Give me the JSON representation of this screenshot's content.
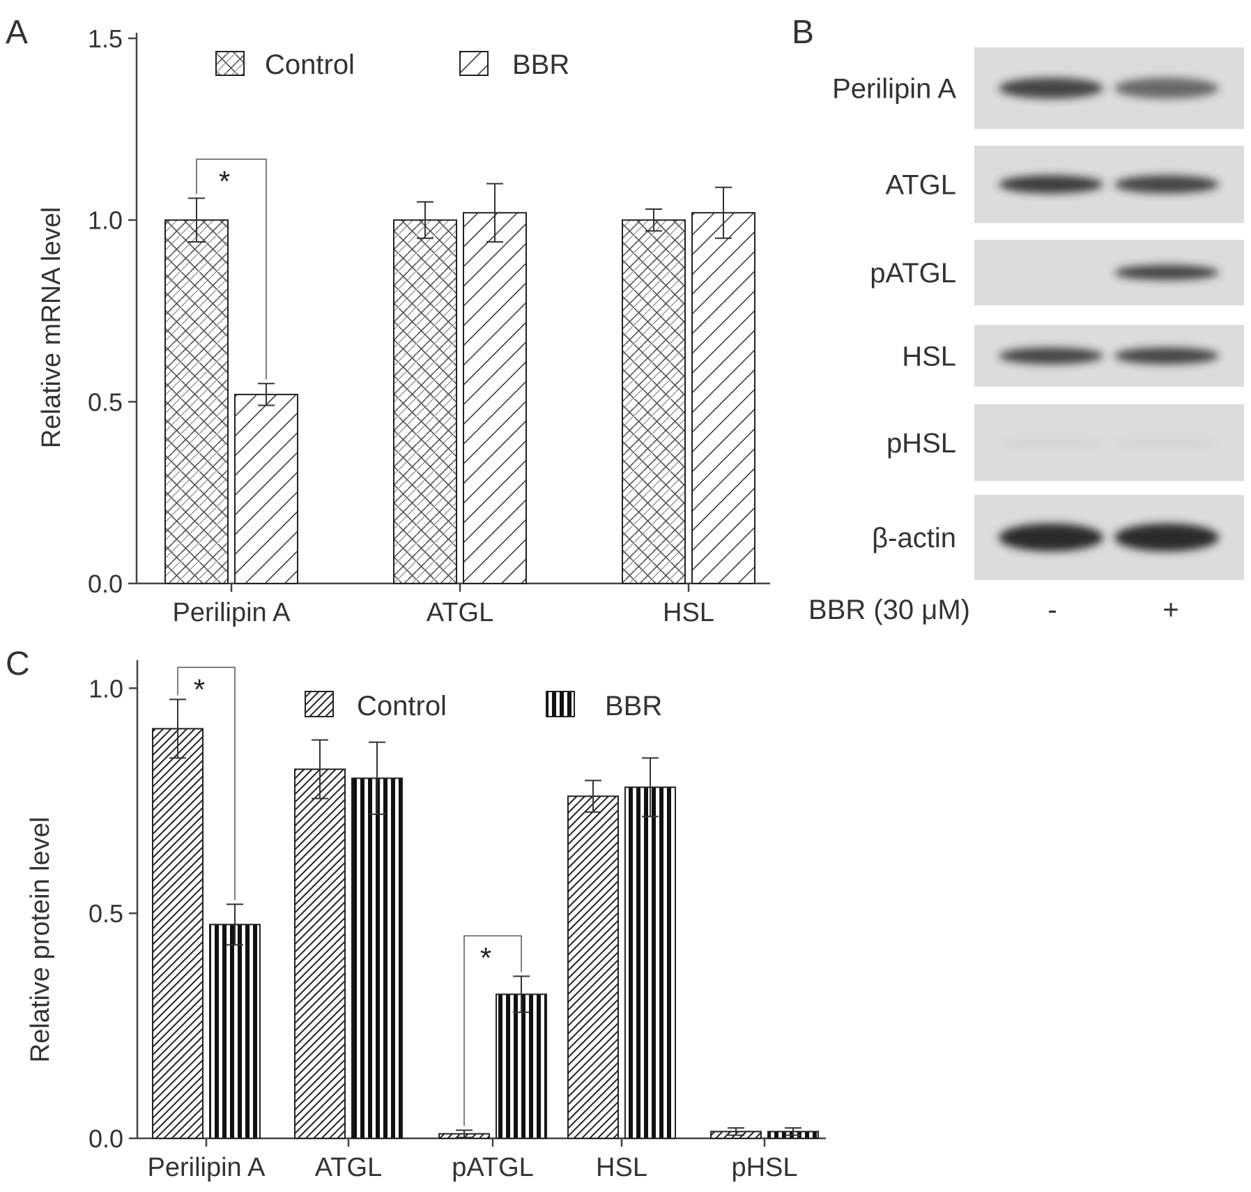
{
  "panels": {
    "A": {
      "letter": "A"
    },
    "B": {
      "letter": "B"
    },
    "C": {
      "letter": "C"
    }
  },
  "colors": {
    "ink": "#333333",
    "blot_bg": "#dcdcdc",
    "band": "#2b2b2b",
    "axis": "#444444"
  },
  "chart_data": [
    {
      "panel": "A",
      "type": "bar",
      "ylabel": "Relative mRNA level",
      "xlabel": "",
      "ylim": [
        0,
        1.5
      ],
      "yticks": [
        "0.0",
        "0.5",
        "1.0",
        "1.5"
      ],
      "categories": [
        "Perilipin A",
        "ATGL",
        "HSL"
      ],
      "legend": {
        "placement": "top",
        "entries": [
          "Control",
          "BBR"
        ]
      },
      "series": [
        {
          "name": "Control",
          "pattern": "crosshatch",
          "values": [
            1.0,
            1.0,
            1.0
          ],
          "errors": [
            0.06,
            0.05,
            0.03
          ]
        },
        {
          "name": "BBR",
          "pattern": "diagonal",
          "values": [
            0.52,
            1.02,
            1.02
          ],
          "errors": [
            0.03,
            0.08,
            0.07
          ]
        }
      ],
      "significance": [
        {
          "category": "Perilipin A",
          "label": "*"
        }
      ]
    },
    {
      "panel": "B",
      "type": "table",
      "rows": [
        "Perilipin A",
        "ATGL",
        "pATGL",
        "HSL",
        "pHSL",
        "β-actin"
      ],
      "condition_label": "BBR (30 μM)",
      "lanes": [
        "-",
        "+"
      ],
      "band_intensity": [
        [
          0.85,
          0.65
        ],
        [
          0.9,
          0.85
        ],
        [
          0.0,
          0.85
        ],
        [
          0.85,
          0.85
        ],
        [
          0.04,
          0.04
        ],
        [
          1.0,
          1.0
        ]
      ]
    },
    {
      "panel": "C",
      "type": "bar",
      "ylabel": "Relative protein level",
      "xlabel": "",
      "ylim": [
        0,
        1.05
      ],
      "yticks": [
        "0.0",
        "0.5",
        "1.0"
      ],
      "categories": [
        "Perilipin A",
        "ATGL",
        "pATGL",
        "HSL",
        "pHSL"
      ],
      "legend": {
        "placement": "top",
        "entries": [
          "Control",
          "BBR"
        ]
      },
      "series": [
        {
          "name": "Control",
          "pattern": "dense-diagonal",
          "values": [
            0.91,
            0.82,
            0.01,
            0.76,
            0.015
          ],
          "errors": [
            0.065,
            0.065,
            0.008,
            0.035,
            0.008
          ]
        },
        {
          "name": "BBR",
          "pattern": "vertical",
          "values": [
            0.475,
            0.8,
            0.32,
            0.78,
            0.015
          ],
          "errors": [
            0.045,
            0.08,
            0.04,
            0.065,
            0.008
          ]
        }
      ],
      "significance": [
        {
          "category": "Perilipin A",
          "label": "*"
        },
        {
          "category": "pATGL",
          "label": "*"
        }
      ]
    }
  ]
}
